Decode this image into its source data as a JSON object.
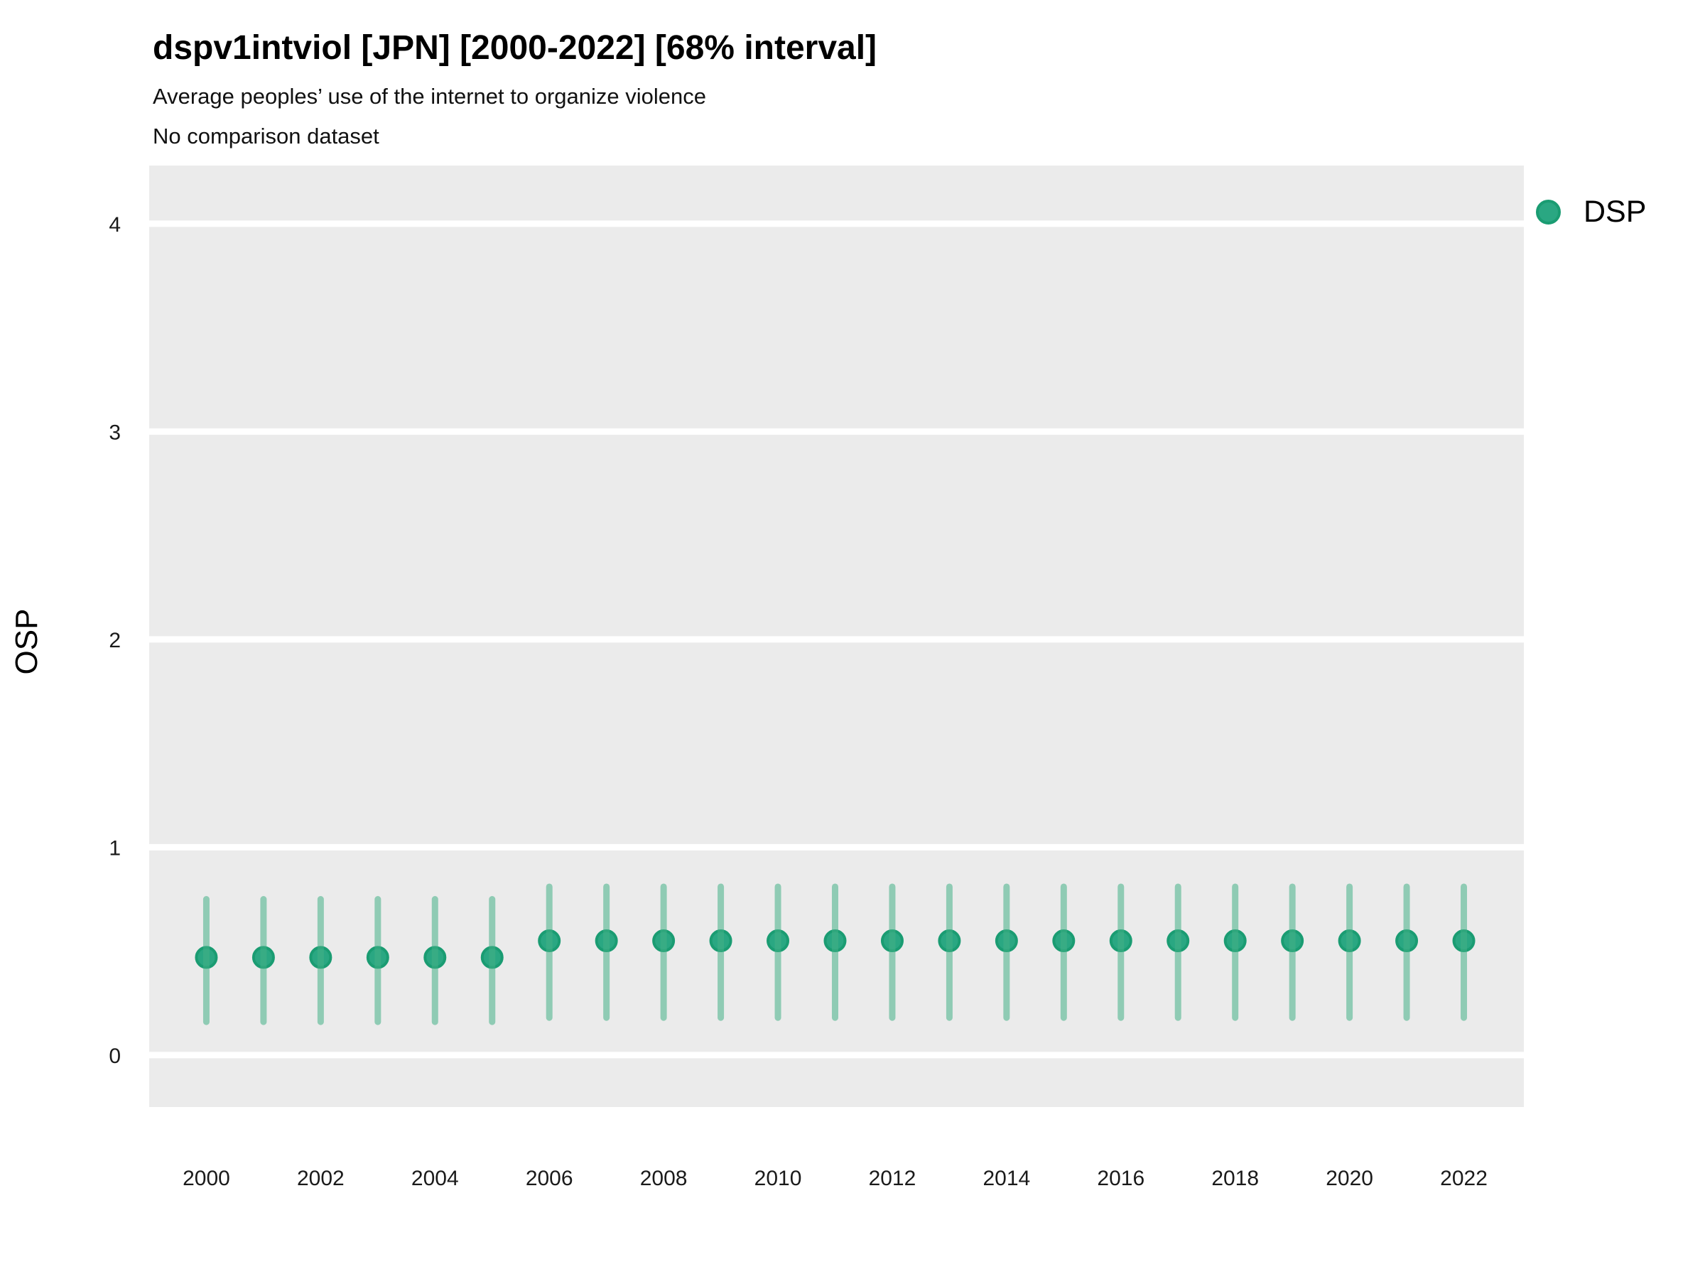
{
  "header": {
    "title": "dspv1intviol [JPN] [2000-2022] [68% interval]",
    "subtitle": "Average peoples’ use of the internet to organize violence",
    "note": "No comparison dataset"
  },
  "legend": {
    "position": "right",
    "items": [
      {
        "label": "DSP",
        "marker": "circle"
      }
    ]
  },
  "colors": {
    "panel_background": "#EBEBEB",
    "gridline": "#FFFFFF",
    "point_fill": "#2AA782",
    "point_stroke": "#1A9C72",
    "interval_line": "rgba(68,177,135,0.55)",
    "tick_text": "#1A1A1A",
    "title_text": "#000000"
  },
  "chart_data": {
    "type": "scatter",
    "title": "dspv1intviol [JPN] [2000-2022] [68% interval]",
    "subtitle": "Average peoples’ use of the internet to organize violence",
    "note": "No comparison dataset",
    "xlabel": "",
    "ylabel": "OSP",
    "interval": "68%",
    "grid": "major-horizontal-only",
    "legend_position": "right",
    "x_ticks": [
      2000,
      2002,
      2004,
      2006,
      2008,
      2010,
      2012,
      2014,
      2016,
      2018,
      2020,
      2022
    ],
    "y_ticks": [
      0,
      1,
      2,
      3,
      4
    ],
    "xlim": [
      1999.0,
      2023.05
    ],
    "ylim": [
      -0.25,
      4.28
    ],
    "series": [
      {
        "name": "DSP",
        "x": [
          2000,
          2001,
          2002,
          2003,
          2004,
          2005,
          2006,
          2007,
          2008,
          2009,
          2010,
          2011,
          2012,
          2013,
          2014,
          2015,
          2016,
          2017,
          2018,
          2019,
          2020,
          2021,
          2022
        ],
        "y": [
          0.47,
          0.47,
          0.47,
          0.47,
          0.47,
          0.47,
          0.55,
          0.55,
          0.55,
          0.55,
          0.55,
          0.55,
          0.55,
          0.55,
          0.55,
          0.55,
          0.55,
          0.55,
          0.55,
          0.55,
          0.55,
          0.55,
          0.55
        ],
        "y_low": [
          0.16,
          0.16,
          0.16,
          0.16,
          0.16,
          0.16,
          0.18,
          0.18,
          0.18,
          0.18,
          0.18,
          0.18,
          0.18,
          0.18,
          0.18,
          0.18,
          0.18,
          0.18,
          0.18,
          0.18,
          0.18,
          0.18,
          0.18
        ],
        "y_high": [
          0.75,
          0.75,
          0.75,
          0.75,
          0.75,
          0.75,
          0.81,
          0.81,
          0.81,
          0.81,
          0.81,
          0.81,
          0.81,
          0.81,
          0.81,
          0.81,
          0.81,
          0.81,
          0.81,
          0.81,
          0.81,
          0.81,
          0.81
        ]
      }
    ]
  }
}
